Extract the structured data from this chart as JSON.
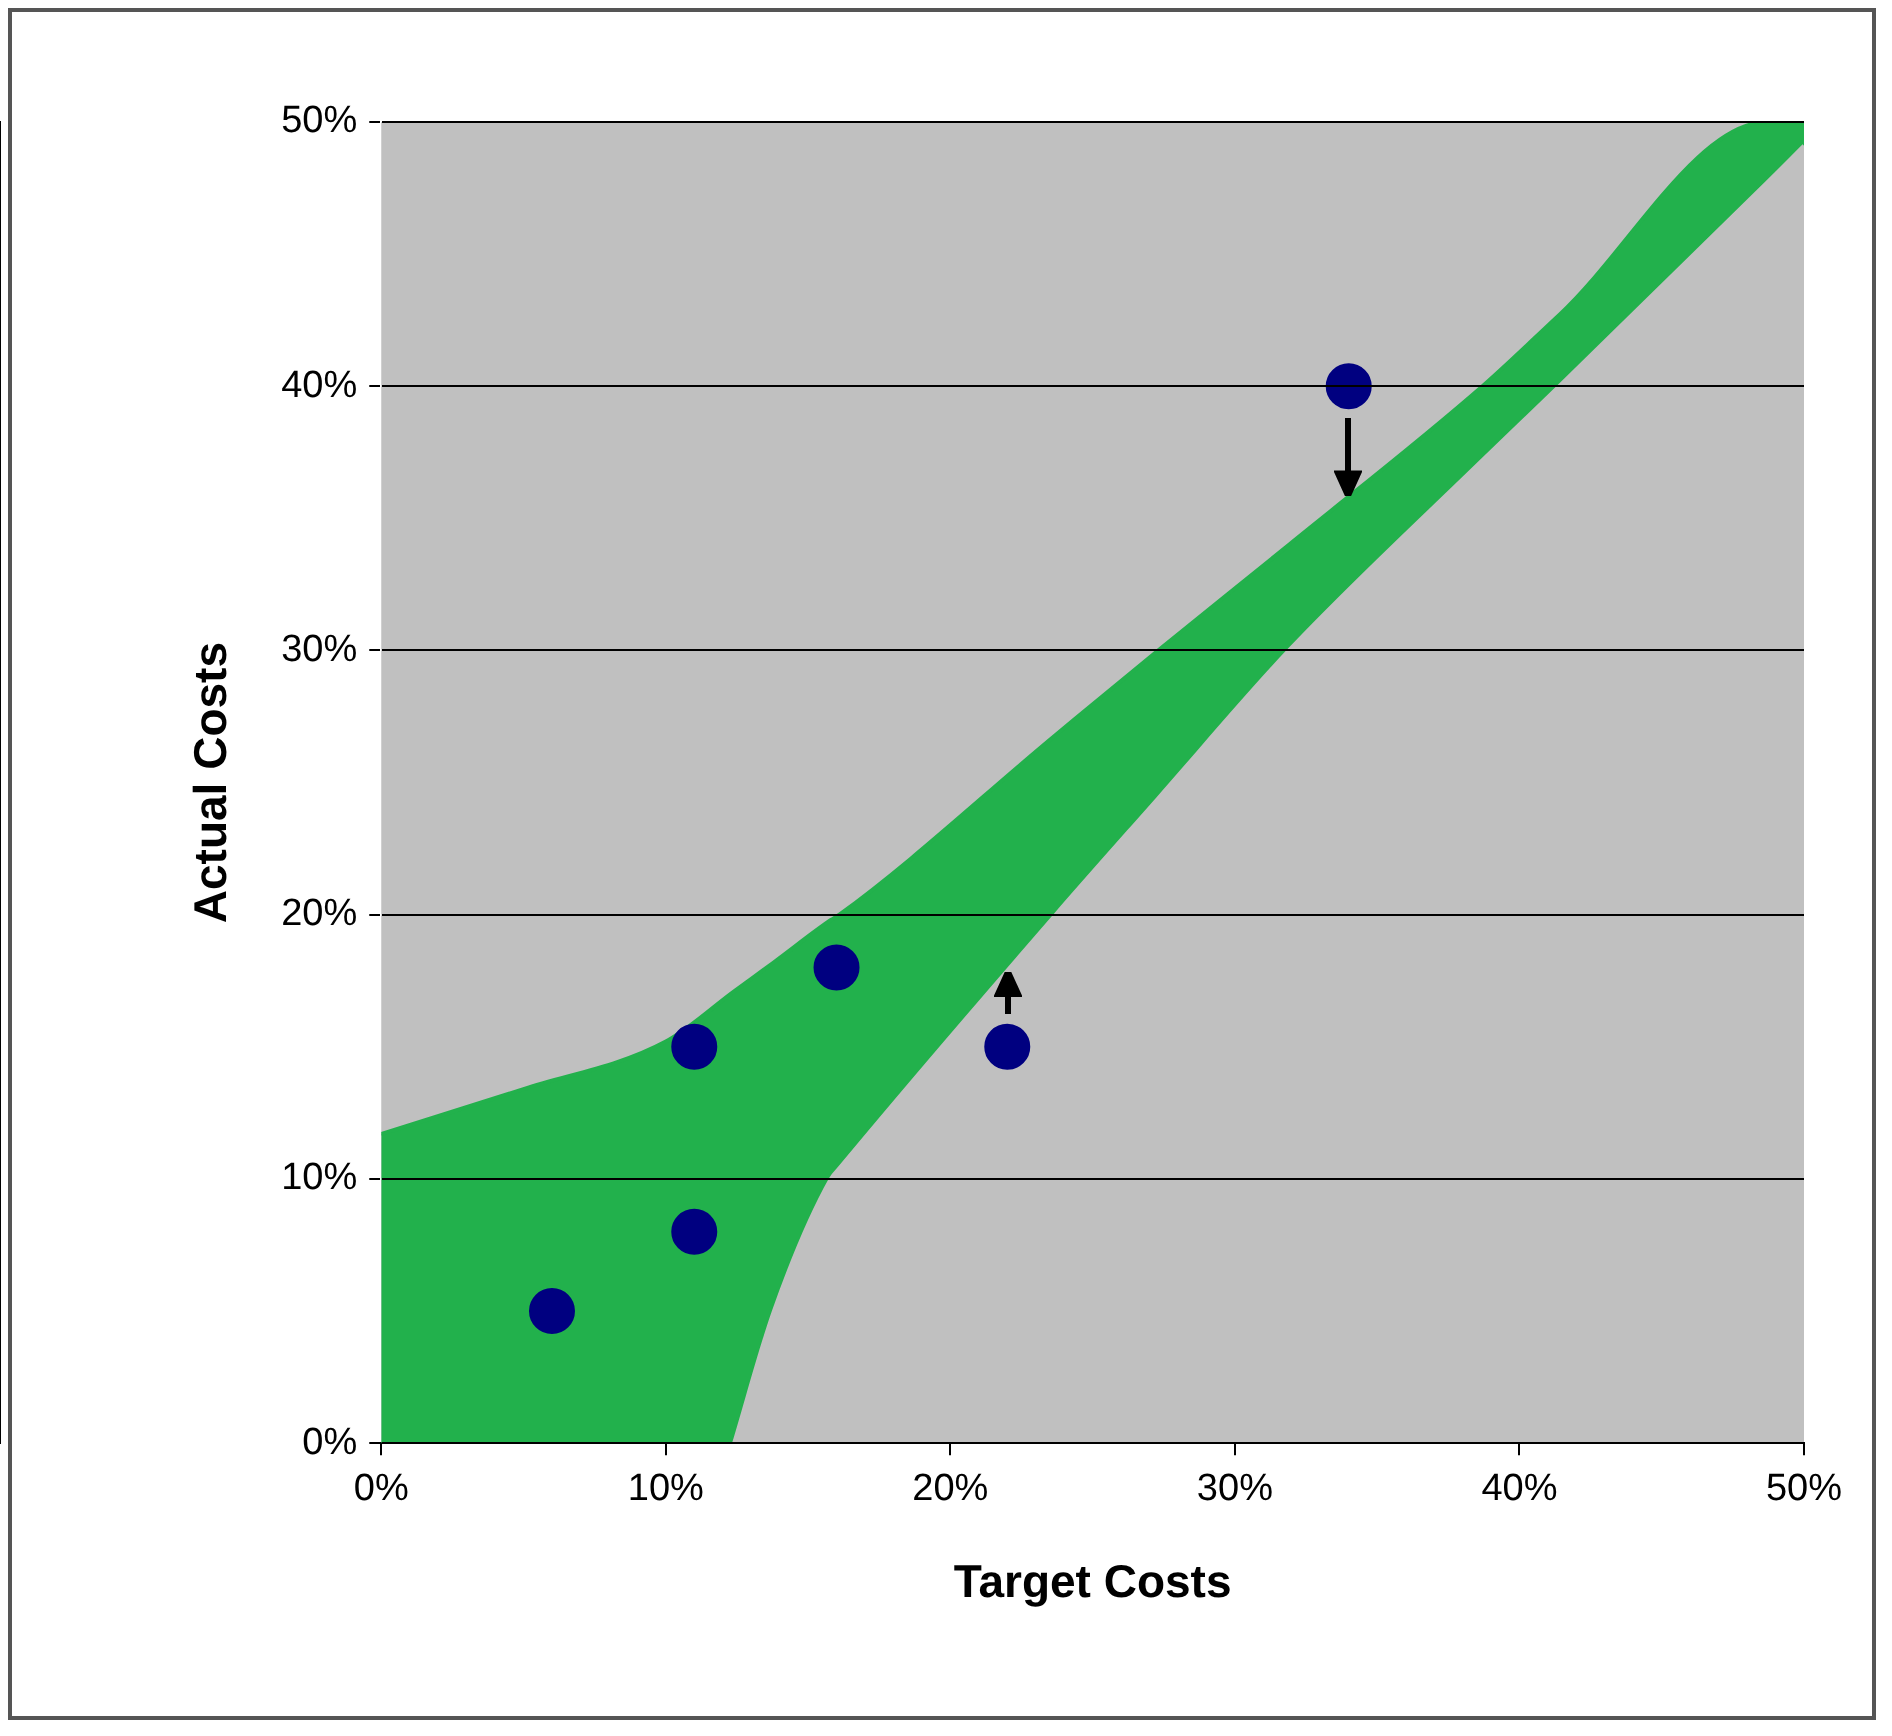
{
  "chart_data": {
    "type": "scatter",
    "xlabel": "Target Costs",
    "ylabel": "Actual Costs",
    "xlim": [
      0,
      50
    ],
    "ylim": [
      0,
      50
    ],
    "xticks": [
      {
        "value": 0,
        "label": "0%"
      },
      {
        "value": 10,
        "label": "10%"
      },
      {
        "value": 20,
        "label": "20%"
      },
      {
        "value": 30,
        "label": "30%"
      },
      {
        "value": 40,
        "label": "40%"
      },
      {
        "value": 50,
        "label": "50%"
      }
    ],
    "yticks": [
      {
        "value": 0,
        "label": "0%"
      },
      {
        "value": 10,
        "label": "10%"
      },
      {
        "value": 20,
        "label": "20%"
      },
      {
        "value": 30,
        "label": "30%"
      },
      {
        "value": 40,
        "label": "40%"
      },
      {
        "value": 50,
        "label": "50%"
      }
    ],
    "grid": "y",
    "legend": false,
    "series": [
      {
        "type": "area",
        "color": "#22b14c",
        "x": [
          0,
          5,
          10,
          12.4,
          13.8,
          15.8,
          16.1,
          23.7,
          27.3,
          31.9,
          38.7,
          41.4,
          48.7,
          50
        ],
        "values": [
          11.7,
          13.4,
          15.2,
          17.1,
          18.2,
          19.8,
          20,
          26.8,
          30,
          34,
          40,
          42.7,
          50,
          50
        ]
      },
      {
        "type": "area",
        "color": "#c0c0c0",
        "x": [
          12.4,
          13.8,
          15.8,
          16.1,
          23.7,
          27.3,
          31.9,
          38.7,
          41.4,
          48.7,
          50
        ],
        "values": [
          0,
          5,
          10,
          10.4,
          20,
          24.4,
          30,
          37.2,
          40,
          47.7,
          49.1
        ]
      },
      {
        "color": "#000080",
        "marker": "circle",
        "x": [
          6,
          11,
          11,
          16,
          22,
          34
        ],
        "values": [
          5,
          8,
          15,
          18,
          15,
          40
        ]
      }
    ]
  }
}
